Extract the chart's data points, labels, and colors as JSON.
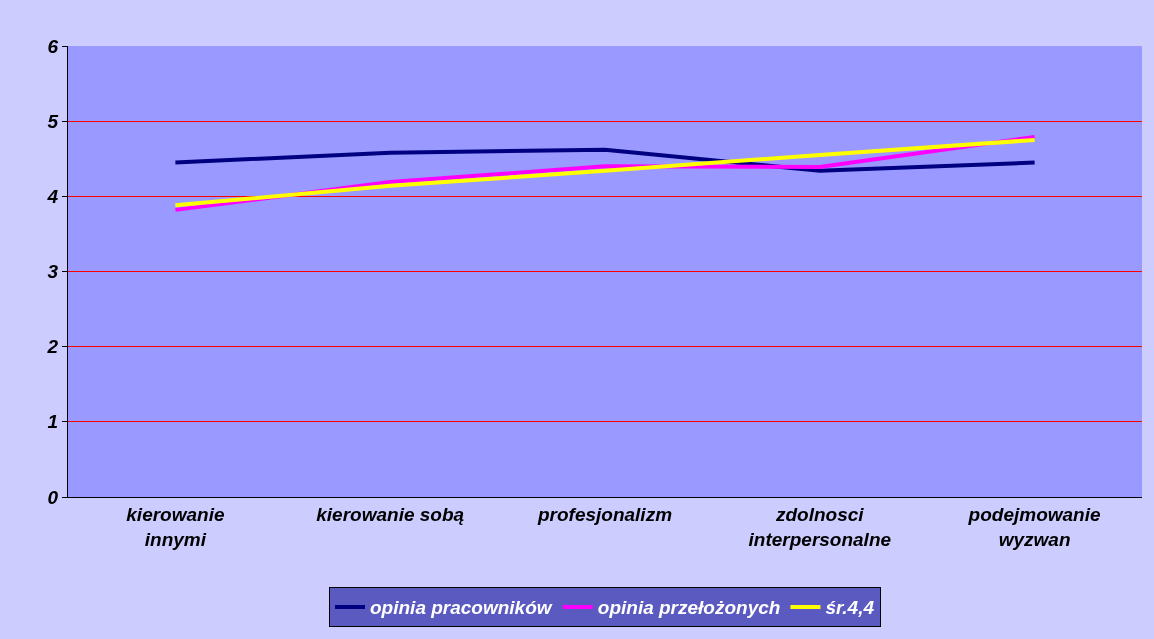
{
  "chart_data": {
    "type": "line",
    "categories": [
      "kierowanie\ninnymi",
      "kierowanie sobą",
      "profesjonalizm",
      "zdolnosci\ninterpersonalne",
      "podejmowanie\nwyzwan"
    ],
    "series": [
      {
        "name": "opinia pracowników",
        "color": "#000080",
        "values": [
          4.45,
          4.58,
          4.62,
          4.34,
          4.45
        ]
      },
      {
        "name": "opinia przełożonych",
        "color": "#ff00ff",
        "values": [
          3.82,
          4.19,
          4.4,
          4.39,
          4.79
        ]
      },
      {
        "name": "śr.4,4",
        "color": "#ffff00",
        "values": [
          3.88,
          4.14,
          4.34,
          4.55,
          4.75
        ]
      }
    ],
    "ylim": [
      0,
      6
    ],
    "yticks": [
      0,
      1,
      2,
      3,
      4,
      5,
      6
    ],
    "grid": "y",
    "legend": "bottom",
    "marker": "none",
    "line_style": "solid"
  }
}
